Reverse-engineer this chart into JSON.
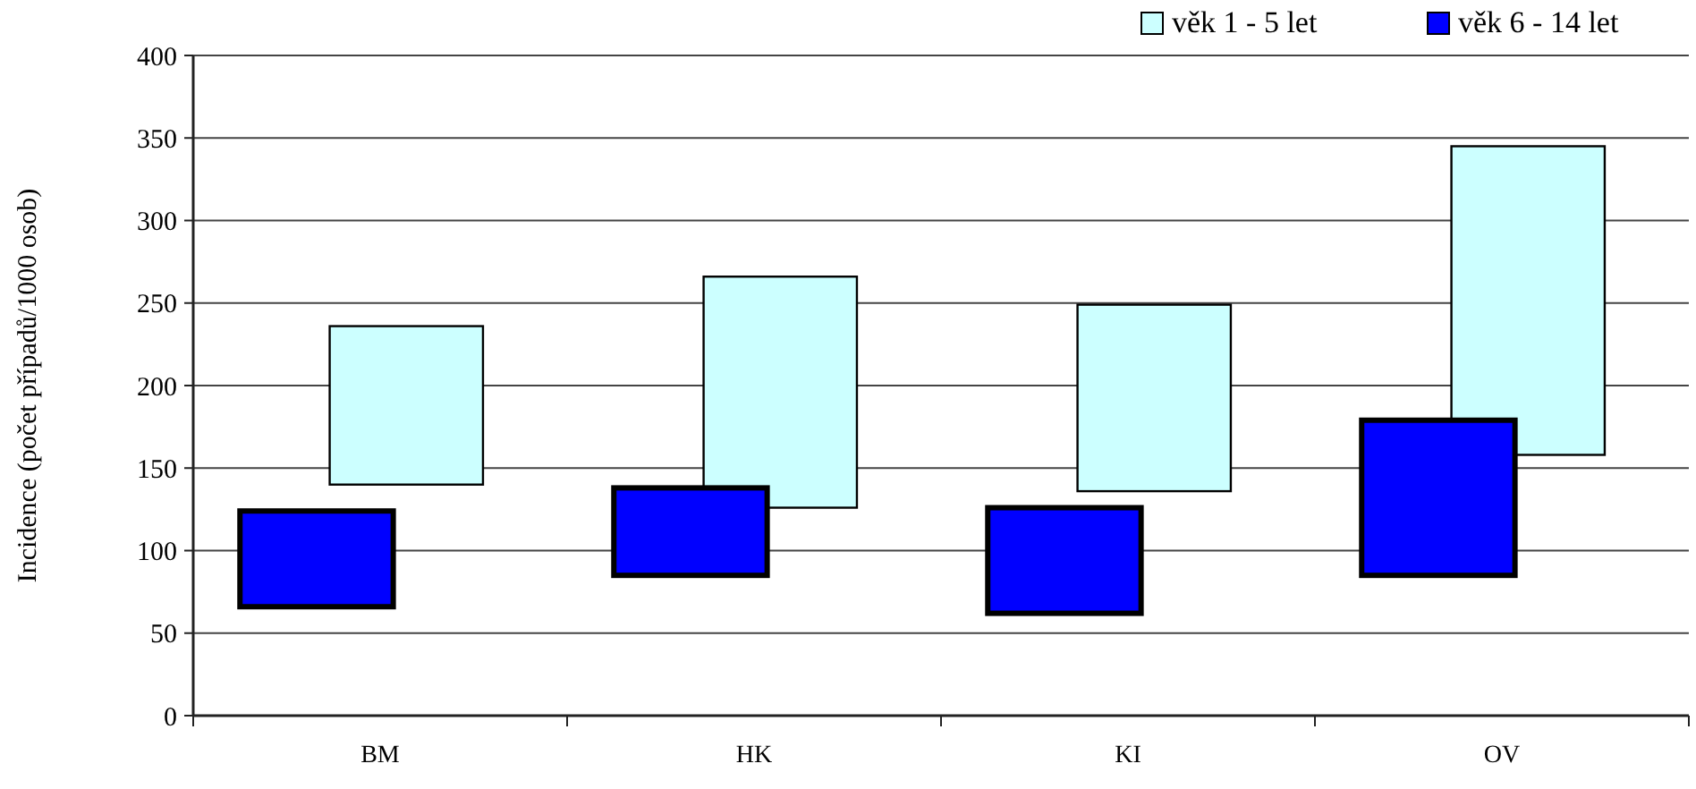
{
  "chart_data": {
    "type": "bar",
    "ylabel": "Incidence (počet případů/1000 osob)",
    "categories": [
      "BM",
      "HK",
      "KI",
      "OV"
    ],
    "series": [
      {
        "name": "věk 1 - 5 let",
        "color": "#ccffff",
        "base": [
          140,
          126,
          136,
          158
        ],
        "values": [
          96,
          140,
          113,
          187
        ]
      },
      {
        "name": "věk 6 - 14 let",
        "color": "#0000ff",
        "base": [
          66,
          85,
          62,
          85
        ],
        "values": [
          58,
          53,
          64,
          94
        ]
      }
    ],
    "ylim": [
      0,
      400
    ],
    "yticks": [
      0,
      50,
      100,
      150,
      200,
      250,
      300,
      350,
      400
    ],
    "grid": "y",
    "legend": "top right"
  }
}
